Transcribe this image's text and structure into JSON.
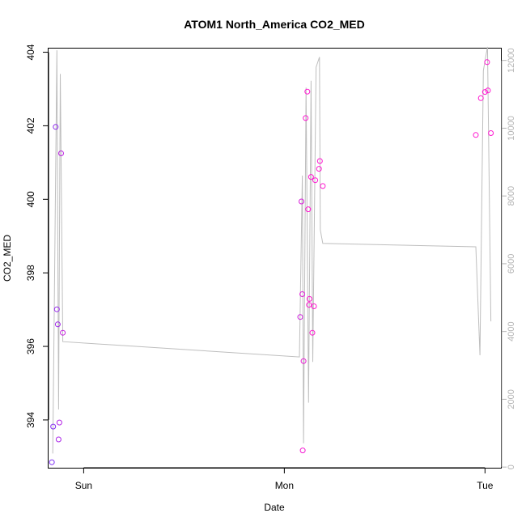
{
  "chart_data": {
    "type": "scatter",
    "title": "ATOM1 North_America CO2_MED",
    "xlabel": "Date",
    "ylabel": "CO2_MED",
    "x_ticks": [
      "Sun",
      "Mon",
      "Tue"
    ],
    "x_unit": "hours since Saturday 00:00",
    "xlim": [
      15.8,
      70.0
    ],
    "ylim": [
      392.7,
      404.1
    ],
    "y_ticks": [
      394,
      396,
      398,
      400,
      402,
      404
    ],
    "y2lim": [
      -20,
      12350
    ],
    "y2_ticks": [
      0,
      2000,
      4000,
      6000,
      8000,
      10000,
      12000
    ],
    "grid": false,
    "legend": "none",
    "point_colors": {
      "start": "#7b2cf5",
      "end": "#ff17d0"
    },
    "line_color": "#bebebe",
    "points": [
      {
        "x": 16.2,
        "y": 392.85
      },
      {
        "x": 16.35,
        "y": 393.82
      },
      {
        "x": 16.65,
        "y": 401.97
      },
      {
        "x": 16.8,
        "y": 397.01
      },
      {
        "x": 16.9,
        "y": 396.6
      },
      {
        "x": 17.0,
        "y": 393.47
      },
      {
        "x": 17.1,
        "y": 393.93
      },
      {
        "x": 17.3,
        "y": 401.25
      },
      {
        "x": 17.5,
        "y": 396.37
      },
      {
        "x": 45.9,
        "y": 396.8
      },
      {
        "x": 46.05,
        "y": 399.94
      },
      {
        "x": 46.15,
        "y": 397.42
      },
      {
        "x": 46.3,
        "y": 395.6
      },
      {
        "x": 46.2,
        "y": 393.17
      },
      {
        "x": 46.55,
        "y": 402.21
      },
      {
        "x": 46.75,
        "y": 402.93
      },
      {
        "x": 46.85,
        "y": 399.73
      },
      {
        "x": 46.95,
        "y": 397.13
      },
      {
        "x": 47.0,
        "y": 397.29
      },
      {
        "x": 47.2,
        "y": 400.61
      },
      {
        "x": 47.35,
        "y": 396.37
      },
      {
        "x": 47.55,
        "y": 397.09
      },
      {
        "x": 47.7,
        "y": 400.52
      },
      {
        "x": 48.15,
        "y": 400.83
      },
      {
        "x": 48.25,
        "y": 401.04
      },
      {
        "x": 48.6,
        "y": 400.36
      },
      {
        "x": 66.9,
        "y": 401.75
      },
      {
        "x": 67.5,
        "y": 402.75
      },
      {
        "x": 68.0,
        "y": 402.92
      },
      {
        "x": 68.25,
        "y": 403.73
      },
      {
        "x": 68.35,
        "y": 402.96
      },
      {
        "x": 68.7,
        "y": 401.8
      }
    ],
    "line_y2": [
      {
        "x": 16.3,
        "y": 400
      },
      {
        "x": 16.5,
        "y": 5000
      },
      {
        "x": 16.8,
        "y": 12300
      },
      {
        "x": 17.0,
        "y": 1700
      },
      {
        "x": 17.2,
        "y": 11600
      },
      {
        "x": 17.5,
        "y": 3700
      },
      {
        "x": 45.8,
        "y": 3250
      },
      {
        "x": 46.15,
        "y": 8600
      },
      {
        "x": 46.3,
        "y": 700
      },
      {
        "x": 46.6,
        "y": 11200
      },
      {
        "x": 46.9,
        "y": 1900
      },
      {
        "x": 47.2,
        "y": 11400
      },
      {
        "x": 47.4,
        "y": 3100
      },
      {
        "x": 47.8,
        "y": 11800
      },
      {
        "x": 48.2,
        "y": 12100
      },
      {
        "x": 48.3,
        "y": 7000
      },
      {
        "x": 48.6,
        "y": 6600
      },
      {
        "x": 66.9,
        "y": 6500
      },
      {
        "x": 67.4,
        "y": 3300
      },
      {
        "x": 67.8,
        "y": 11700
      },
      {
        "x": 68.3,
        "y": 12400
      },
      {
        "x": 68.7,
        "y": 4300
      }
    ]
  }
}
